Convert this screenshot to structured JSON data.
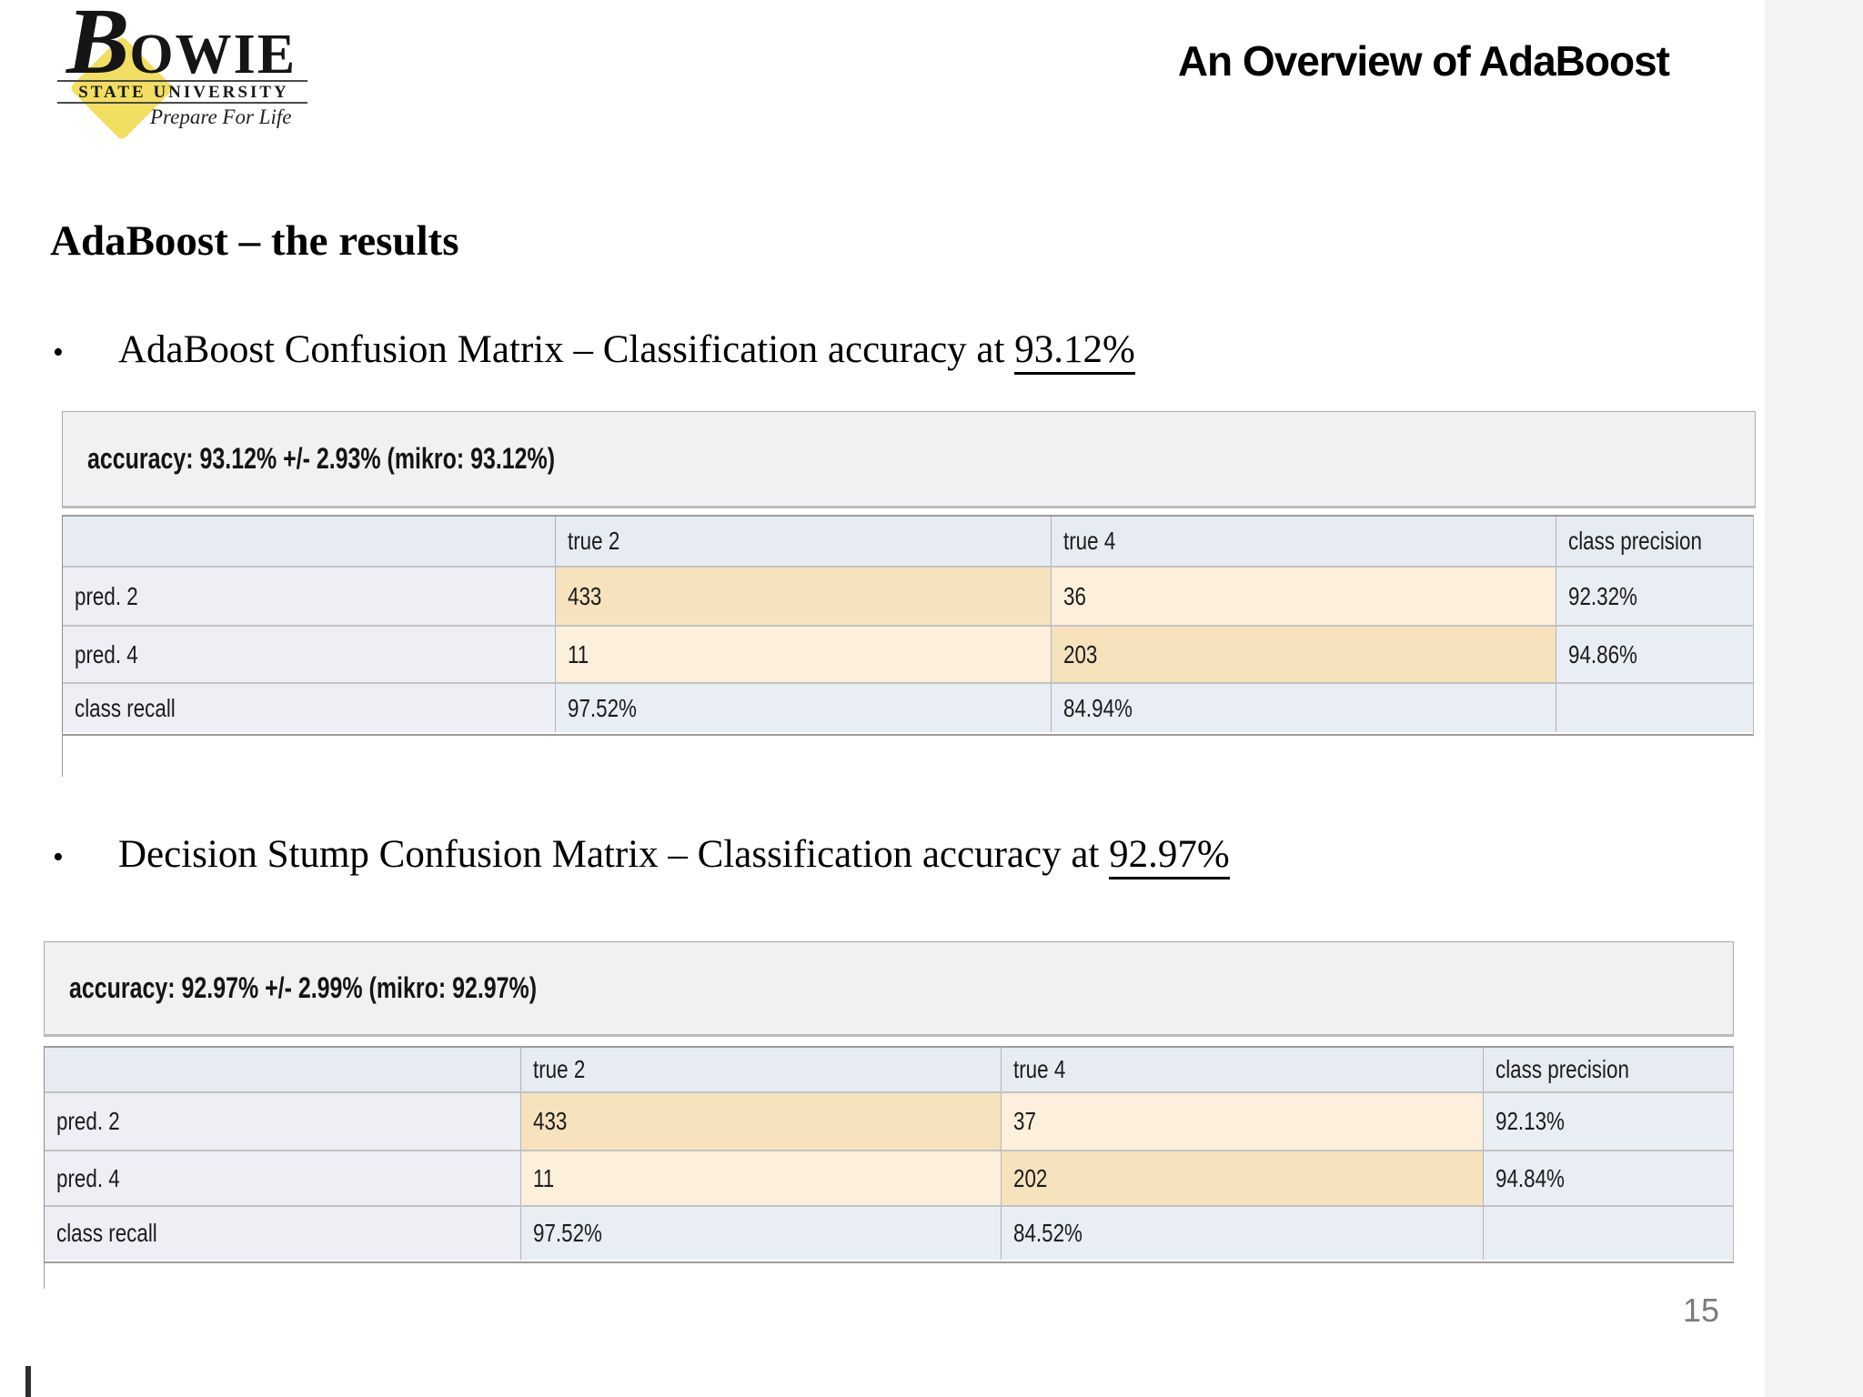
{
  "logo": {
    "initial": "B",
    "rest": "OWIE",
    "sub": "STATE UNIVERSITY",
    "tagline": "Prepare For Life",
    "diamond_color": "#f2df62"
  },
  "header": {
    "title": "An Overview of AdaBoost"
  },
  "slide": {
    "heading": "AdaBoost – the results",
    "page_number": "15"
  },
  "bullets": [
    {
      "prefix": "AdaBoost Confusion Matrix – Classification accuracy at ",
      "underlined": "93.12%"
    },
    {
      "prefix": "Decision Stump Confusion Matrix – Classification accuracy at ",
      "underlined": "92.97%"
    }
  ],
  "matrices": [
    {
      "accuracy_line": "accuracy: 93.12% +/- 2.93% (mikro: 93.12%)",
      "columns": {
        "c1": "",
        "c2": "true 2",
        "c3": "true 4",
        "c4": "class precision"
      },
      "rows": [
        {
          "label": "pred. 2",
          "v1": "433",
          "v2": "36",
          "v3": "92.32%"
        },
        {
          "label": "pred. 4",
          "v1": "11",
          "v2": "203",
          "v3": "94.86%"
        },
        {
          "label": "class recall",
          "v1": "97.52%",
          "v2": "84.94%",
          "v3": ""
        }
      ]
    },
    {
      "accuracy_line": "accuracy: 92.97% +/- 2.99% (mikro: 92.97%)",
      "columns": {
        "c1": "",
        "c2": "true 2",
        "c3": "true 4",
        "c4": "class precision"
      },
      "rows": [
        {
          "label": "pred. 2",
          "v1": "433",
          "v2": "37",
          "v3": "92.13%"
        },
        {
          "label": "pred. 4",
          "v1": "11",
          "v2": "202",
          "v3": "94.84%"
        },
        {
          "label": "class recall",
          "v1": "97.52%",
          "v2": "84.52%",
          "v3": ""
        }
      ]
    }
  ],
  "colors": {
    "header_row_bg": "#e7ebf2",
    "label_col_bg": "#edeff5",
    "metric_bg": "#e9edf4",
    "diag_cell_bg": "#f6e2bd",
    "offdiag_cell_bg": "#fcf0dc",
    "accuracy_bar_bg": "#f1f0f2",
    "right_strip_bg": "#f3f2f4",
    "page_number_color": "#7b7b7b"
  }
}
